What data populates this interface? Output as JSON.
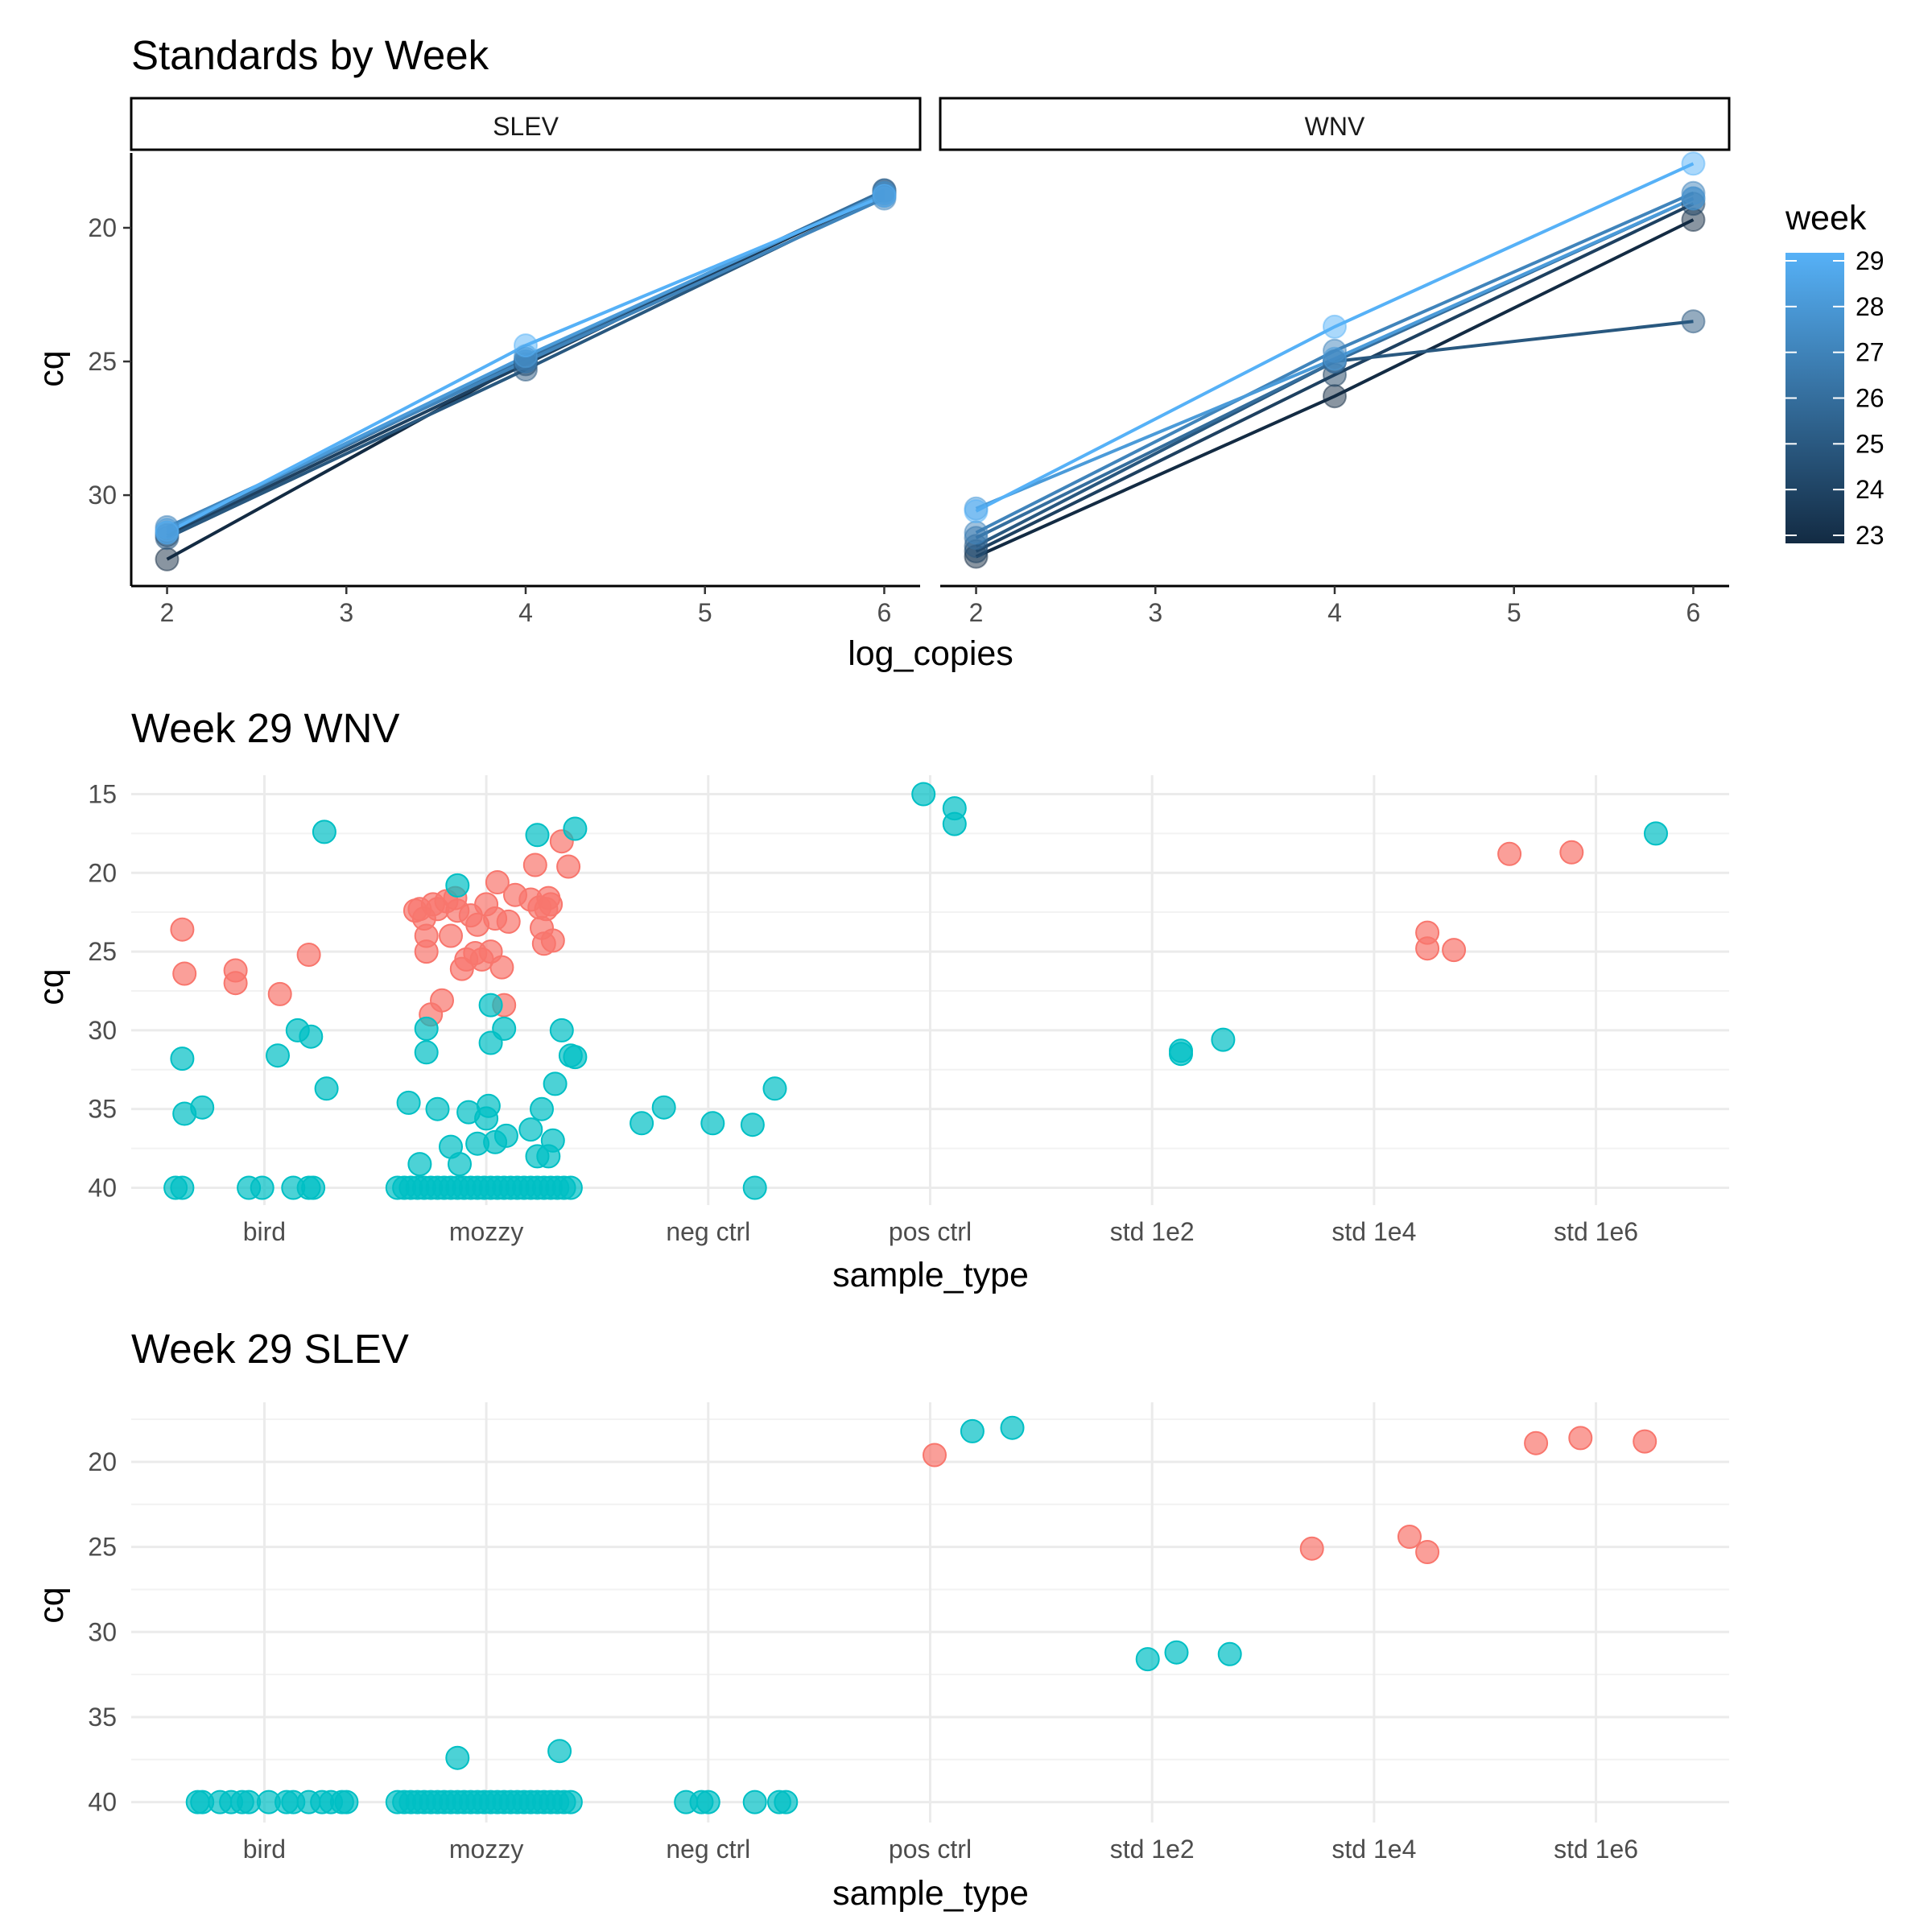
{
  "figure_titles": {
    "standards": "Standards by Week",
    "wnv": "Week 29 WNV",
    "slev": "Week 29 SLEV"
  },
  "chart_data": [
    {
      "type": "line",
      "title": "Standards by Week",
      "xlabel": "log_copies",
      "ylabel": "cq",
      "facets": [
        "SLEV",
        "WNV"
      ],
      "x_ticks": [
        2,
        3,
        4,
        5,
        6
      ],
      "xlim": [
        1.8,
        6.2
      ],
      "y_ticks": [
        20,
        25,
        30
      ],
      "ylim": [
        17.2,
        33.4
      ],
      "y_reversed": true,
      "legend": {
        "title": "week",
        "position": "right",
        "ticks": [
          29,
          28,
          27,
          26,
          25,
          24,
          23
        ],
        "range": [
          23,
          29
        ],
        "low_color": "#132b43",
        "high_color": "#56b1f7"
      },
      "series": [
        {
          "facet": "SLEV",
          "week": 23,
          "points": [
            [
              2,
              32.4
            ],
            [
              4,
              25.0
            ],
            [
              6,
              18.7
            ]
          ]
        },
        {
          "facet": "SLEV",
          "week": 24,
          "points": [
            [
              2,
              31.5
            ],
            [
              4,
              25.1
            ],
            [
              6,
              18.6
            ]
          ]
        },
        {
          "facet": "SLEV",
          "week": 25,
          "points": [
            [
              2,
              31.6
            ],
            [
              4,
              25.3
            ],
            [
              6,
              18.8
            ]
          ]
        },
        {
          "facet": "SLEV",
          "week": 26,
          "points": [
            [
              2,
              31.4
            ],
            [
              4,
              24.9
            ],
            [
              6,
              18.6
            ]
          ]
        },
        {
          "facet": "SLEV",
          "week": 27,
          "points": [
            [
              2,
              31.2
            ],
            [
              4,
              25.0
            ],
            [
              6,
              18.9
            ]
          ]
        },
        {
          "facet": "SLEV",
          "week": 28,
          "points": [
            [
              2,
              31.3
            ],
            [
              4,
              24.8
            ],
            [
              6,
              18.7
            ]
          ]
        },
        {
          "facet": "SLEV",
          "week": 29,
          "points": [
            [
              2,
              31.4
            ],
            [
              4,
              24.4
            ],
            [
              6,
              18.8
            ]
          ]
        },
        {
          "facet": "WNV",
          "week": 23,
          "points": [
            [
              2,
              32.3
            ],
            [
              4,
              26.3
            ],
            [
              6,
              19.7
            ]
          ]
        },
        {
          "facet": "WNV",
          "week": 24,
          "points": [
            [
              2,
              32.1
            ],
            [
              4,
              25.5
            ],
            [
              6,
              19.1
            ]
          ]
        },
        {
          "facet": "WNV",
          "week": 25,
          "points": [
            [
              2,
              31.9
            ],
            [
              4,
              25.0
            ],
            [
              6,
              23.5
            ]
          ]
        },
        {
          "facet": "WNV",
          "week": 26,
          "points": [
            [
              2,
              31.6
            ],
            [
              4,
              25.0
            ],
            [
              6,
              18.9
            ]
          ]
        },
        {
          "facet": "WNV",
          "week": 27,
          "points": [
            [
              2,
              31.4
            ],
            [
              4,
              24.6
            ],
            [
              6,
              18.7
            ]
          ]
        },
        {
          "facet": "WNV",
          "week": 28,
          "points": [
            [
              2,
              30.5
            ],
            [
              4,
              24.9
            ],
            [
              6,
              18.9
            ]
          ]
        },
        {
          "facet": "WNV",
          "week": 29,
          "points": [
            [
              2,
              30.6
            ],
            [
              4,
              23.7
            ],
            [
              6,
              17.6
            ]
          ]
        }
      ]
    },
    {
      "type": "scatter",
      "title": "Week 29 WNV",
      "xlabel": "sample_type",
      "ylabel": "cq",
      "categories": [
        "bird",
        "mozzy",
        "neg ctrl",
        "pos ctrl",
        "std 1e2",
        "std 1e4",
        "std 1e6"
      ],
      "y_ticks": [
        15,
        20,
        25,
        30,
        35,
        40
      ],
      "ylim": [
        13.8,
        41.1
      ],
      "y_reversed": true,
      "colors": [
        "#f8766d",
        "#00bfc4"
      ],
      "points": [
        [
          -0.37,
          23.6,
          0
        ],
        [
          -0.36,
          26.4,
          0
        ],
        [
          -0.13,
          26.2,
          0
        ],
        [
          -0.13,
          27.0,
          0
        ],
        [
          0.07,
          27.7,
          0
        ],
        [
          0.2,
          25.2,
          0
        ],
        [
          -0.37,
          31.8,
          1
        ],
        [
          -0.36,
          35.3,
          1
        ],
        [
          -0.28,
          34.9,
          1
        ],
        [
          -0.4,
          40,
          1
        ],
        [
          -0.37,
          40,
          1
        ],
        [
          -0.07,
          40,
          1
        ],
        [
          -0.01,
          40,
          1
        ],
        [
          0.06,
          31.6,
          1
        ],
        [
          0.15,
          30.0,
          1
        ],
        [
          0.13,
          40,
          1
        ],
        [
          0.2,
          40,
          1
        ],
        [
          0.22,
          40,
          1
        ],
        [
          0.21,
          30.4,
          1
        ],
        [
          0.27,
          17.4,
          1
        ],
        [
          0.28,
          33.7,
          1
        ],
        [
          -0.32,
          22.4,
          0
        ],
        [
          -0.3,
          22.3,
          0
        ],
        [
          -0.28,
          22.9,
          0
        ],
        [
          -0.27,
          25.0,
          0
        ],
        [
          -0.27,
          24.0,
          0
        ],
        [
          -0.25,
          29.0,
          0
        ],
        [
          -0.24,
          22.0,
          0
        ],
        [
          -0.22,
          22.3,
          0
        ],
        [
          -0.2,
          28.1,
          0
        ],
        [
          -0.18,
          21.8,
          0
        ],
        [
          -0.16,
          24.0,
          0
        ],
        [
          -0.14,
          21.6,
          0
        ],
        [
          -0.13,
          22.4,
          0
        ],
        [
          -0.11,
          26.1,
          0
        ],
        [
          -0.09,
          25.5,
          0
        ],
        [
          -0.07,
          22.7,
          0
        ],
        [
          -0.05,
          25.1,
          0
        ],
        [
          -0.04,
          23.3,
          0
        ],
        [
          -0.02,
          25.5,
          0
        ],
        [
          0.0,
          22.0,
          0
        ],
        [
          0.02,
          25.0,
          0
        ],
        [
          0.04,
          22.9,
          0
        ],
        [
          0.05,
          20.6,
          0
        ],
        [
          0.07,
          26.0,
          0
        ],
        [
          0.08,
          28.4,
          0
        ],
        [
          0.1,
          23.1,
          0
        ],
        [
          0.13,
          21.4,
          0
        ],
        [
          0.2,
          21.7,
          0
        ],
        [
          0.22,
          19.5,
          0
        ],
        [
          0.24,
          22.2,
          0
        ],
        [
          0.25,
          23.5,
          0
        ],
        [
          0.26,
          24.5,
          0
        ],
        [
          0.27,
          22.3,
          0
        ],
        [
          0.28,
          21.6,
          0
        ],
        [
          0.29,
          22.0,
          0
        ],
        [
          0.3,
          24.3,
          0
        ],
        [
          0.34,
          18.0,
          0
        ],
        [
          0.37,
          19.6,
          0
        ],
        [
          -0.35,
          34.6,
          1
        ],
        [
          -0.3,
          38.5,
          1
        ],
        [
          -0.27,
          29.9,
          1
        ],
        [
          -0.27,
          31.4,
          1
        ],
        [
          -0.22,
          35.0,
          1
        ],
        [
          -0.16,
          37.4,
          1
        ],
        [
          -0.13,
          20.8,
          1
        ],
        [
          -0.12,
          38.5,
          1
        ],
        [
          -0.08,
          35.2,
          1
        ],
        [
          -0.04,
          37.2,
          1
        ],
        [
          0.0,
          35.6,
          1
        ],
        [
          0.01,
          34.8,
          1
        ],
        [
          0.02,
          28.4,
          1
        ],
        [
          0.02,
          30.8,
          1
        ],
        [
          0.04,
          37.1,
          1
        ],
        [
          0.08,
          29.9,
          1
        ],
        [
          0.09,
          36.7,
          1
        ],
        [
          0.2,
          36.3,
          1
        ],
        [
          0.23,
          38.0,
          1
        ],
        [
          0.25,
          35.0,
          1
        ],
        [
          0.28,
          38.0,
          1
        ],
        [
          0.3,
          37.0,
          1
        ],
        [
          0.31,
          33.4,
          1
        ],
        [
          0.34,
          30.0,
          1
        ],
        [
          0.38,
          31.6,
          1
        ],
        [
          0.4,
          31.7,
          1
        ],
        [
          0.23,
          17.6,
          1
        ],
        [
          0.4,
          17.2,
          1
        ],
        [
          -0.4,
          40,
          1
        ],
        [
          -0.37,
          40,
          1
        ],
        [
          -0.34,
          40,
          1
        ],
        [
          -0.31,
          40,
          1
        ],
        [
          -0.28,
          40,
          1
        ],
        [
          -0.25,
          40,
          1
        ],
        [
          -0.22,
          40,
          1
        ],
        [
          -0.19,
          40,
          1
        ],
        [
          -0.16,
          40,
          1
        ],
        [
          -0.13,
          40,
          1
        ],
        [
          -0.1,
          40,
          1
        ],
        [
          -0.07,
          40,
          1
        ],
        [
          -0.04,
          40,
          1
        ],
        [
          -0.01,
          40,
          1
        ],
        [
          0.02,
          40,
          1
        ],
        [
          0.05,
          40,
          1
        ],
        [
          0.08,
          40,
          1
        ],
        [
          0.11,
          40,
          1
        ],
        [
          0.14,
          40,
          1
        ],
        [
          0.17,
          40,
          1
        ],
        [
          0.2,
          40,
          1
        ],
        [
          0.23,
          40,
          1
        ],
        [
          0.26,
          40,
          1
        ],
        [
          0.29,
          40,
          1
        ],
        [
          0.32,
          40,
          1
        ],
        [
          0.35,
          40,
          1
        ],
        [
          0.38,
          40,
          1
        ],
        [
          -0.3,
          35.9,
          1
        ],
        [
          -0.2,
          34.9,
          1
        ],
        [
          0.02,
          35.9,
          1
        ],
        [
          0.2,
          36.0,
          1
        ],
        [
          0.3,
          33.7,
          1
        ],
        [
          0.21,
          40,
          1
        ],
        [
          -0.03,
          15.0,
          1
        ],
        [
          0.11,
          15.9,
          1
        ],
        [
          0.11,
          16.9,
          1
        ],
        [
          0.13,
          31.3,
          1
        ],
        [
          0.13,
          31.5,
          1
        ],
        [
          0.32,
          30.6,
          1
        ],
        [
          0.24,
          23.8,
          0
        ],
        [
          0.24,
          24.8,
          0
        ],
        [
          0.36,
          24.9,
          0
        ],
        [
          -0.39,
          18.8,
          0
        ],
        [
          -0.11,
          18.7,
          0
        ],
        [
          0.27,
          17.5,
          1
        ]
      ]
    },
    {
      "type": "scatter",
      "title": "Week 29 SLEV",
      "xlabel": "sample_type",
      "ylabel": "cq",
      "categories": [
        "bird",
        "mozzy",
        "neg ctrl",
        "pos ctrl",
        "std 1e2",
        "std 1e4",
        "std 1e6"
      ],
      "y_ticks": [
        20,
        25,
        30,
        35,
        40
      ],
      "ylim": [
        16.5,
        41.2
      ],
      "y_reversed": true,
      "colors": [
        "#f8766d",
        "#00bfc4"
      ],
      "points": [
        [
          -0.3,
          40,
          1
        ],
        [
          -0.28,
          40,
          1
        ],
        [
          -0.2,
          40,
          1
        ],
        [
          -0.15,
          40,
          1
        ],
        [
          -0.1,
          40,
          1
        ],
        [
          -0.07,
          40,
          1
        ],
        [
          0.02,
          40,
          1
        ],
        [
          0.1,
          40,
          1
        ],
        [
          0.13,
          40,
          1
        ],
        [
          0.2,
          40,
          1
        ],
        [
          0.26,
          40,
          1
        ],
        [
          0.3,
          40,
          1
        ],
        [
          0.35,
          40,
          1
        ],
        [
          0.37,
          40,
          1
        ],
        [
          -0.13,
          37.4,
          1
        ],
        [
          0.33,
          37.0,
          1
        ],
        [
          -0.4,
          40,
          1
        ],
        [
          -0.37,
          40,
          1
        ],
        [
          -0.34,
          40,
          1
        ],
        [
          -0.31,
          40,
          1
        ],
        [
          -0.28,
          40,
          1
        ],
        [
          -0.25,
          40,
          1
        ],
        [
          -0.22,
          40,
          1
        ],
        [
          -0.19,
          40,
          1
        ],
        [
          -0.16,
          40,
          1
        ],
        [
          -0.13,
          40,
          1
        ],
        [
          -0.1,
          40,
          1
        ],
        [
          -0.07,
          40,
          1
        ],
        [
          -0.04,
          40,
          1
        ],
        [
          -0.01,
          40,
          1
        ],
        [
          0.02,
          40,
          1
        ],
        [
          0.05,
          40,
          1
        ],
        [
          0.08,
          40,
          1
        ],
        [
          0.11,
          40,
          1
        ],
        [
          0.14,
          40,
          1
        ],
        [
          0.17,
          40,
          1
        ],
        [
          0.2,
          40,
          1
        ],
        [
          0.23,
          40,
          1
        ],
        [
          0.26,
          40,
          1
        ],
        [
          0.29,
          40,
          1
        ],
        [
          0.32,
          40,
          1
        ],
        [
          0.35,
          40,
          1
        ],
        [
          0.38,
          40,
          1
        ],
        [
          -0.1,
          40,
          1
        ],
        [
          -0.03,
          40,
          1
        ],
        [
          0.0,
          40,
          1
        ],
        [
          0.21,
          40,
          1
        ],
        [
          0.32,
          40,
          1
        ],
        [
          0.35,
          40,
          1
        ],
        [
          0.02,
          19.6,
          0
        ],
        [
          0.19,
          18.2,
          1
        ],
        [
          0.37,
          18.0,
          1
        ],
        [
          -0.02,
          31.6,
          1
        ],
        [
          0.11,
          31.2,
          1
        ],
        [
          0.35,
          31.3,
          1
        ],
        [
          -0.28,
          25.1,
          0
        ],
        [
          0.16,
          24.4,
          0
        ],
        [
          0.24,
          25.3,
          0
        ],
        [
          -0.27,
          18.9,
          0
        ],
        [
          -0.07,
          18.6,
          0
        ],
        [
          0.22,
          18.8,
          0
        ]
      ]
    }
  ]
}
